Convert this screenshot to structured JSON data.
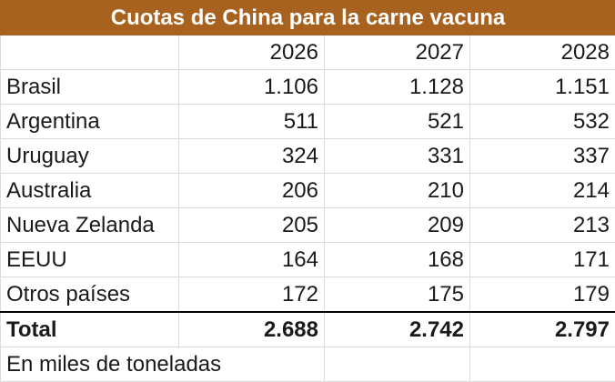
{
  "title": "Cuotas de China para la carne vacuna",
  "title_bg_color": "#A86220",
  "columns": [
    "",
    "2026",
    "2027",
    "2028"
  ],
  "rows": [
    {
      "label": "Brasil",
      "values": [
        "1.106",
        "1.128",
        "1.151"
      ]
    },
    {
      "label": "Argentina",
      "values": [
        "511",
        "521",
        "532"
      ]
    },
    {
      "label": "Uruguay",
      "values": [
        "324",
        "331",
        "337"
      ]
    },
    {
      "label": "Australia",
      "values": [
        "206",
        "210",
        "214"
      ]
    },
    {
      "label": "Nueva Zelanda",
      "values": [
        "205",
        "209",
        "213"
      ]
    },
    {
      "label": "EEUU",
      "values": [
        "164",
        "168",
        "171"
      ]
    },
    {
      "label": "Otros países",
      "values": [
        "172",
        "175",
        "179"
      ]
    }
  ],
  "total": {
    "label": "Total",
    "values": [
      "2.688",
      "2.742",
      "2.797"
    ]
  },
  "note": "En miles de toneladas"
}
